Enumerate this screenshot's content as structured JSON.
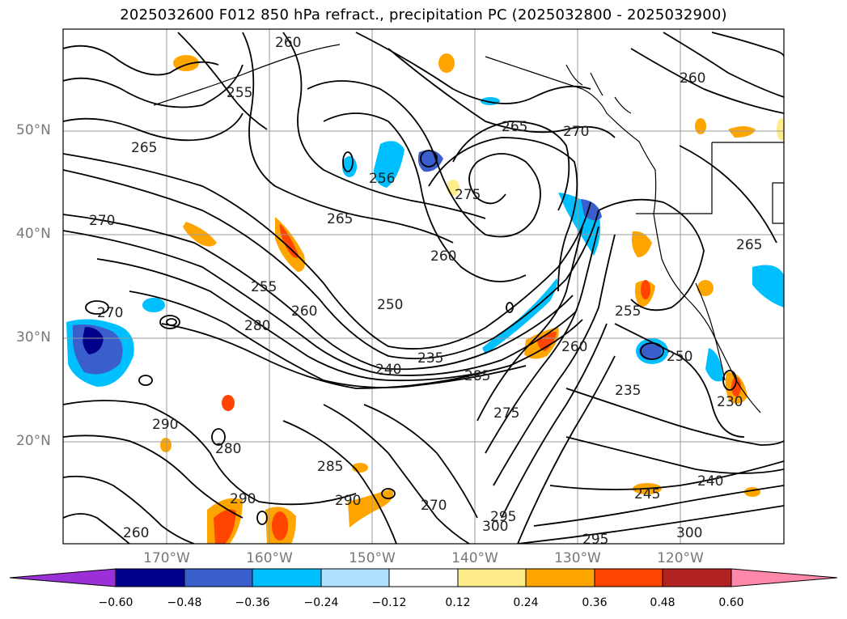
{
  "title": "2025032600 F012 850 hPa refract., precipitation PC (2025032800 - 2025032900)",
  "lat_labels": [
    "50°N",
    "40°N",
    "30°N",
    "20°N"
  ],
  "lon_labels": [
    "170°W",
    "160°W",
    "150°W",
    "140°W",
    "130°W",
    "120°W"
  ],
  "contour_labels": [
    "260",
    "265",
    "255",
    "265",
    "256",
    "260",
    "270",
    "275",
    "265",
    "260",
    "270",
    "250",
    "255",
    "260",
    "280",
    "240",
    "235",
    "285",
    "275",
    "260",
    "255",
    "250",
    "235",
    "230",
    "290",
    "280",
    "285",
    "290",
    "295",
    "300",
    "270",
    "245",
    "240",
    "300",
    "295",
    "265",
    "270",
    "290",
    "260"
  ],
  "colorbar": {
    "tick_labels": [
      "−0.60",
      "−0.48",
      "−0.36",
      "−0.24",
      "−0.12",
      "0.12",
      "0.24",
      "0.36",
      "0.48",
      "0.60"
    ],
    "colors": [
      "#9b30d9",
      "#00008b",
      "#3a5fcd",
      "#00bfff",
      "#b0e2ff",
      "#ffffff",
      "#ffec8b",
      "#ffa500",
      "#ff4500",
      "#b22222",
      "#ff88aa"
    ]
  },
  "colors": {
    "contour": "#000000",
    "grid": "#9a9a9a",
    "coast": "#000000"
  }
}
